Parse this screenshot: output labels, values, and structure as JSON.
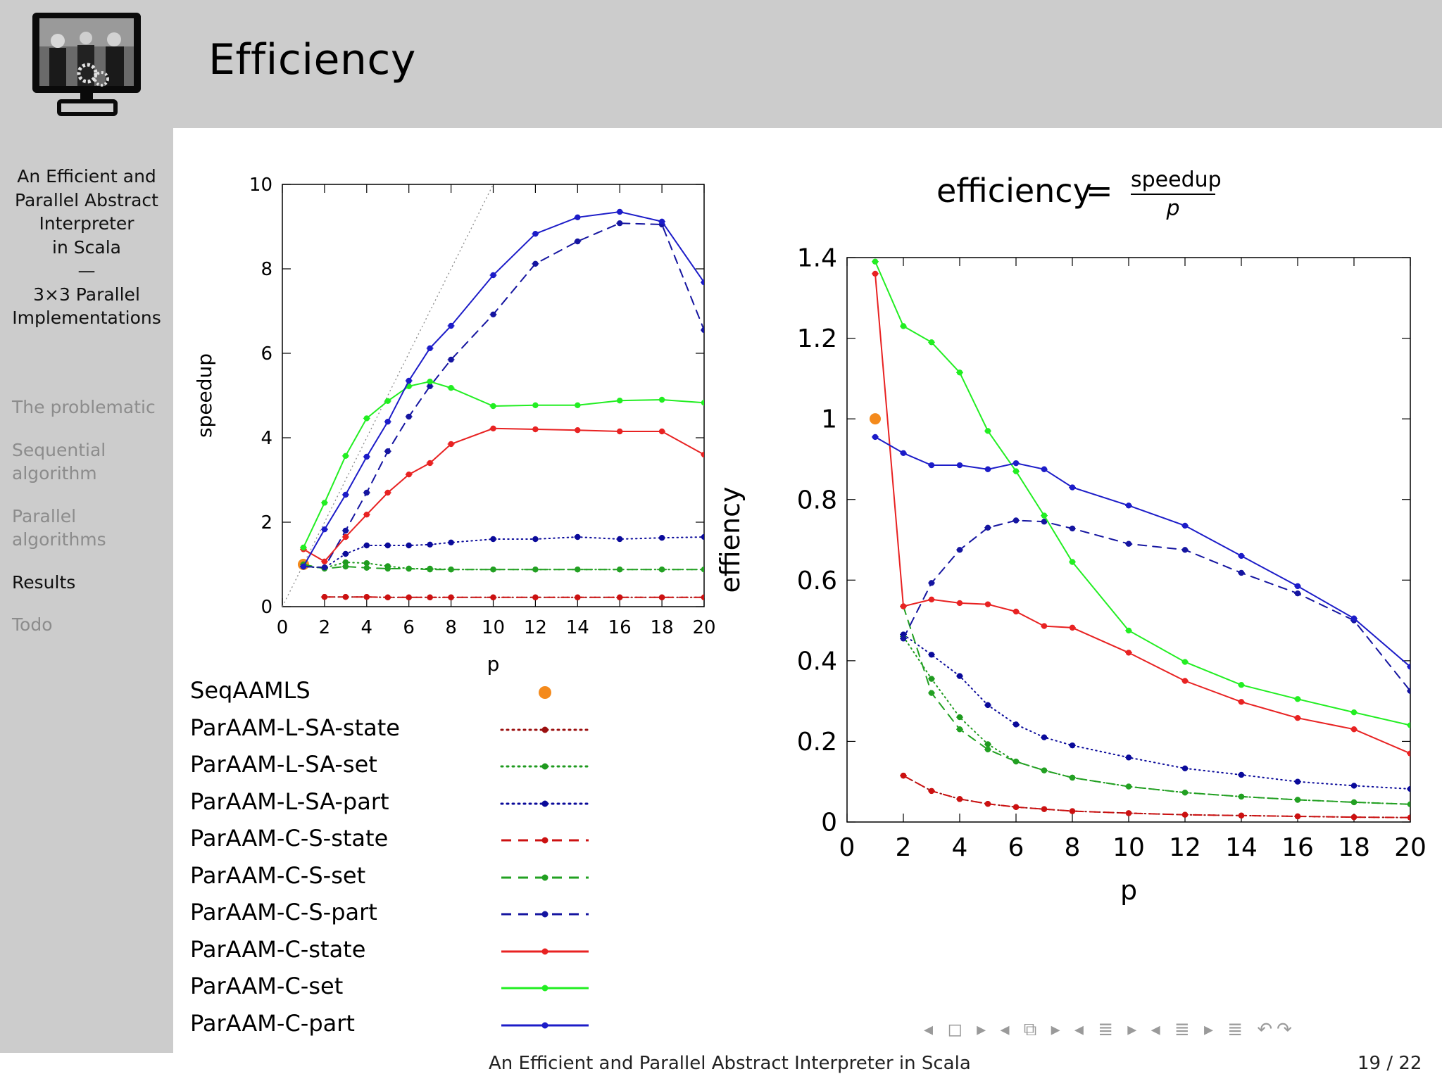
{
  "slide": {
    "title": "Efficiency",
    "sidebar_title_lines": [
      "An Efficient and",
      "Parallel Abstract",
      "Interpreter",
      "in Scala",
      "—",
      "3×3 Parallel",
      "Implementations"
    ],
    "nav_items": [
      {
        "label": "The problematic",
        "active": false
      },
      {
        "label": "Sequential algorithm",
        "active": false
      },
      {
        "label": "Parallel algorithms",
        "active": false
      },
      {
        "label": "Results",
        "active": true
      },
      {
        "label": "Todo",
        "active": false
      }
    ],
    "footer_title": "An Efficient and Parallel Abstract Interpreter in Scala",
    "page_number": "19 / 22",
    "nav_symbols": "◂ ◻ ▸  ◂ ⧉ ▸  ◂ ≣ ▸  ◂ ≣ ▸  ≣  ↶↷"
  },
  "formula": {
    "lhs": "efficiency",
    "equals": "=",
    "numerator": "speedup",
    "denominator": "p"
  },
  "legend": [
    {
      "name": "SeqAAMLS",
      "color": "#f48a1c",
      "style": "point"
    },
    {
      "name": "ParAAM-L-SA-state",
      "color": "#9b0f0f",
      "style": "dotted"
    },
    {
      "name": "ParAAM-L-SA-set",
      "color": "#1f9a1f",
      "style": "dotted"
    },
    {
      "name": "ParAAM-L-SA-part",
      "color": "#0a0a9a",
      "style": "dotted"
    },
    {
      "name": "ParAAM-C-S-state",
      "color": "#cc1111",
      "style": "dashed"
    },
    {
      "name": "ParAAM-C-S-set",
      "color": "#22a022",
      "style": "dashed"
    },
    {
      "name": "ParAAM-C-S-part",
      "color": "#1515a0",
      "style": "dashed"
    },
    {
      "name": "ParAAM-C-state",
      "color": "#e82222",
      "style": "solid"
    },
    {
      "name": "ParAAM-C-set",
      "color": "#22ee22",
      "style": "solid"
    },
    {
      "name": "ParAAM-C-part",
      "color": "#1c1cc8",
      "style": "solid"
    }
  ],
  "chart_data": [
    {
      "type": "line",
      "title": "",
      "xlabel": "p",
      "ylabel": "speedup",
      "xlim": [
        0,
        20
      ],
      "ylim": [
        0,
        10
      ],
      "xticks": [
        0,
        2,
        4,
        6,
        8,
        10,
        12,
        14,
        16,
        18,
        20
      ],
      "yticks": [
        0,
        2,
        4,
        6,
        8,
        10
      ],
      "reference_line": {
        "name": "ideal",
        "x": [
          0,
          10
        ],
        "y": [
          0,
          10
        ]
      },
      "series": [
        {
          "name": "SeqAAMLS",
          "x": [
            1
          ],
          "y": [
            1.0
          ]
        },
        {
          "name": "ParAAM-L-SA-state",
          "x": [
            2,
            3,
            4,
            5,
            6,
            7,
            8,
            10,
            12,
            14,
            16,
            18,
            20
          ],
          "y": [
            0.23,
            0.23,
            0.23,
            0.22,
            0.22,
            0.22,
            0.22,
            0.22,
            0.22,
            0.22,
            0.22,
            0.22,
            0.22
          ]
        },
        {
          "name": "ParAAM-L-SA-set",
          "x": [
            1,
            2,
            3,
            4,
            5,
            6,
            7,
            8,
            10,
            12,
            14,
            16,
            18,
            20
          ],
          "y": [
            0.95,
            0.92,
            1.05,
            1.03,
            0.96,
            0.9,
            0.9,
            0.88,
            0.88,
            0.88,
            0.88,
            0.88,
            0.88,
            0.88
          ]
        },
        {
          "name": "ParAAM-L-SA-part",
          "x": [
            1,
            2,
            3,
            4,
            5,
            6,
            7,
            8,
            10,
            12,
            14,
            16,
            18,
            20
          ],
          "y": [
            0.95,
            0.92,
            1.25,
            1.45,
            1.45,
            1.45,
            1.47,
            1.52,
            1.6,
            1.6,
            1.65,
            1.6,
            1.63,
            1.65
          ]
        },
        {
          "name": "ParAAM-C-S-state",
          "x": [
            2,
            3,
            4,
            5,
            6,
            7,
            8,
            10,
            12,
            14,
            16,
            18,
            20
          ],
          "y": [
            0.23,
            0.23,
            0.23,
            0.22,
            0.22,
            0.22,
            0.22,
            0.22,
            0.22,
            0.22,
            0.22,
            0.22,
            0.22
          ]
        },
        {
          "name": "ParAAM-C-S-set",
          "x": [
            1,
            2,
            3,
            4,
            5,
            6,
            7,
            8,
            10,
            12,
            14,
            16,
            18,
            20
          ],
          "y": [
            1.0,
            0.9,
            0.95,
            0.92,
            0.9,
            0.9,
            0.88,
            0.88,
            0.88,
            0.88,
            0.88,
            0.88,
            0.88,
            0.88
          ]
        },
        {
          "name": "ParAAM-C-S-part",
          "x": [
            1,
            2,
            3,
            4,
            5,
            6,
            7,
            8,
            10,
            12,
            14,
            16,
            18,
            20
          ],
          "y": [
            0.95,
            0.93,
            1.8,
            2.7,
            3.68,
            4.5,
            5.22,
            5.85,
            6.92,
            8.12,
            8.65,
            9.08,
            9.05,
            6.55
          ]
        },
        {
          "name": "ParAAM-C-state",
          "x": [
            1,
            2,
            3,
            4,
            5,
            6,
            7,
            8,
            10,
            12,
            14,
            16,
            18,
            20
          ],
          "y": [
            1.36,
            1.07,
            1.65,
            2.18,
            2.7,
            3.13,
            3.4,
            3.85,
            4.22,
            4.2,
            4.18,
            4.15,
            4.15,
            3.6
          ]
        },
        {
          "name": "ParAAM-C-set",
          "x": [
            1,
            2,
            3,
            4,
            5,
            6,
            7,
            8,
            10,
            12,
            14,
            16,
            18,
            20
          ],
          "y": [
            1.4,
            2.46,
            3.57,
            4.46,
            4.87,
            5.22,
            5.33,
            5.18,
            4.75,
            4.77,
            4.77,
            4.88,
            4.9,
            4.83
          ]
        },
        {
          "name": "ParAAM-C-part",
          "x": [
            1,
            2,
            3,
            4,
            5,
            6,
            7,
            8,
            10,
            12,
            14,
            16,
            18,
            20
          ],
          "y": [
            0.95,
            1.83,
            2.65,
            3.55,
            4.38,
            5.35,
            6.12,
            6.65,
            7.85,
            8.83,
            9.22,
            9.35,
            9.12,
            7.68
          ]
        }
      ]
    },
    {
      "type": "line",
      "title": "efficiency = speedup / p",
      "xlabel": "p",
      "ylabel": "effiency",
      "xlim": [
        0,
        20
      ],
      "ylim": [
        0,
        1.4
      ],
      "xticks": [
        0,
        2,
        4,
        6,
        8,
        10,
        12,
        14,
        16,
        18,
        20
      ],
      "yticks": [
        0,
        0.2,
        0.4,
        0.6,
        0.8,
        1,
        1.2,
        1.4
      ],
      "series": [
        {
          "name": "SeqAAMLS",
          "x": [
            1
          ],
          "y": [
            1.0
          ]
        },
        {
          "name": "ParAAM-L-SA-state",
          "x": [
            2,
            3,
            4,
            5,
            6,
            7,
            8,
            10,
            12,
            14,
            16,
            18,
            20
          ],
          "y": [
            0.115,
            0.077,
            0.057,
            0.045,
            0.037,
            0.032,
            0.027,
            0.022,
            0.018,
            0.016,
            0.014,
            0.012,
            0.011
          ]
        },
        {
          "name": "ParAAM-L-SA-set",
          "x": [
            2,
            3,
            4,
            5,
            6,
            7,
            8,
            10,
            12,
            14,
            16,
            18,
            20
          ],
          "y": [
            0.46,
            0.355,
            0.26,
            0.193,
            0.15,
            0.128,
            0.11,
            0.088,
            0.073,
            0.063,
            0.055,
            0.049,
            0.044
          ]
        },
        {
          "name": "ParAAM-L-SA-part",
          "x": [
            2,
            3,
            4,
            5,
            6,
            7,
            8,
            10,
            12,
            14,
            16,
            18,
            20
          ],
          "y": [
            0.465,
            0.415,
            0.362,
            0.29,
            0.242,
            0.21,
            0.19,
            0.16,
            0.133,
            0.117,
            0.1,
            0.09,
            0.082
          ]
        },
        {
          "name": "ParAAM-C-S-state",
          "x": [
            2,
            3,
            4,
            5,
            6,
            7,
            8,
            10,
            12,
            14,
            16,
            18,
            20
          ],
          "y": [
            0.115,
            0.077,
            0.057,
            0.045,
            0.037,
            0.032,
            0.027,
            0.022,
            0.018,
            0.016,
            0.014,
            0.012,
            0.011
          ]
        },
        {
          "name": "ParAAM-C-S-set",
          "x": [
            2,
            3,
            4,
            5,
            6,
            7,
            8,
            10,
            12,
            14,
            16,
            18,
            20
          ],
          "y": [
            0.535,
            0.32,
            0.23,
            0.18,
            0.15,
            0.128,
            0.11,
            0.088,
            0.073,
            0.063,
            0.055,
            0.049,
            0.044
          ]
        },
        {
          "name": "ParAAM-C-S-part",
          "x": [
            2,
            3,
            4,
            5,
            6,
            7,
            8,
            10,
            12,
            14,
            16,
            18,
            20
          ],
          "y": [
            0.455,
            0.593,
            0.675,
            0.73,
            0.748,
            0.745,
            0.728,
            0.69,
            0.675,
            0.618,
            0.567,
            0.5,
            0.325
          ]
        },
        {
          "name": "ParAAM-C-state",
          "x": [
            1,
            2,
            3,
            4,
            5,
            6,
            7,
            8,
            10,
            12,
            14,
            16,
            18,
            20
          ],
          "y": [
            1.36,
            0.535,
            0.552,
            0.543,
            0.54,
            0.522,
            0.486,
            0.482,
            0.42,
            0.35,
            0.298,
            0.258,
            0.23,
            0.17
          ]
        },
        {
          "name": "ParAAM-C-set",
          "x": [
            1,
            2,
            3,
            4,
            5,
            6,
            7,
            8,
            10,
            12,
            14,
            16,
            18,
            20
          ],
          "y": [
            1.39,
            1.23,
            1.19,
            1.115,
            0.97,
            0.87,
            0.76,
            0.645,
            0.475,
            0.397,
            0.34,
            0.305,
            0.272,
            0.24
          ]
        },
        {
          "name": "ParAAM-C-part",
          "x": [
            1,
            2,
            3,
            4,
            5,
            6,
            7,
            8,
            10,
            12,
            14,
            16,
            18,
            20
          ],
          "y": [
            0.955,
            0.915,
            0.885,
            0.885,
            0.875,
            0.89,
            0.875,
            0.83,
            0.785,
            0.735,
            0.66,
            0.585,
            0.505,
            0.385
          ]
        }
      ]
    }
  ]
}
